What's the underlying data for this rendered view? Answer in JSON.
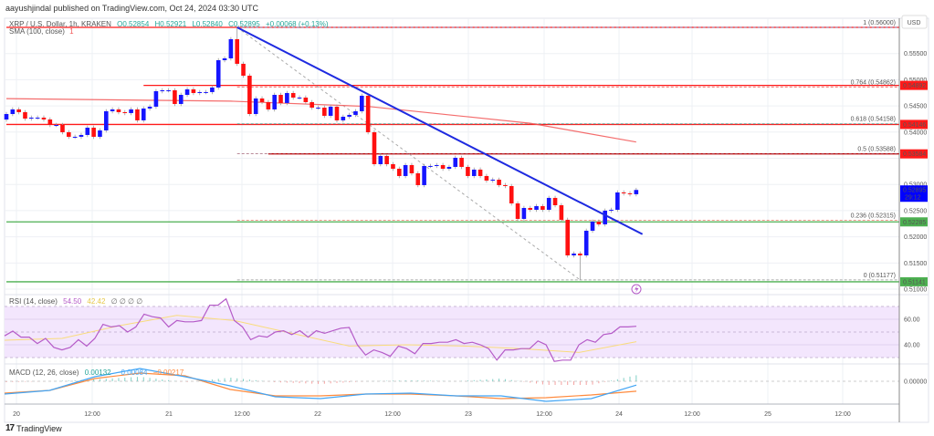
{
  "header": {
    "published": "aayushjindal published on TradingView.com, Oct 24, 2024 03:30 UTC"
  },
  "legend": {
    "symbol": "XRP / U.S. Dollar, 1h, KRAKEN",
    "open": "O0.52854",
    "high": "H0.52921",
    "low": "L0.52840",
    "close": "C0.52895",
    "change": "+0.00068 (+0.13%)",
    "sma_label": "SMA (100, close)",
    "sma_flag": "1"
  },
  "price_axis": {
    "currency": "USD",
    "ticks": [
      "0.55500",
      "0.55000",
      "0.54500",
      "0.54000",
      "0.53000",
      "0.52500",
      "0.52000",
      "0.51500",
      "0.51000"
    ],
    "badges": [
      {
        "text": "0.54892",
        "color": "#ff1a1a"
      },
      {
        "text": "0.54146",
        "color": "#ff1a1a"
      },
      {
        "text": "0.53584",
        "color": "#ff1a1a"
      },
      {
        "text": "0.52895",
        "sub": "29:12",
        "color": "#0000ff"
      },
      {
        "text": "0.52285",
        "color": "#4caf50"
      },
      {
        "text": "0.51141",
        "color": "#4caf50"
      }
    ]
  },
  "fib_labels": [
    {
      "text": "1 (0.56000)",
      "price": 0.56,
      "color": "#64b5f6"
    },
    {
      "text": "0.764 (0.54862)",
      "price": 0.54862,
      "color": "#e53935"
    },
    {
      "text": "0.618 (0.54158)",
      "price": 0.54158,
      "color": "#26a69a"
    },
    {
      "text": "0.5 (0.53588)",
      "price": 0.53588,
      "color": "#9c5a6e"
    },
    {
      "text": "0.236 (0.52315)",
      "price": 0.52315,
      "color": "#ef6b5b"
    },
    {
      "text": "0 (0.51177)",
      "price": 0.51177,
      "color": "#888888"
    }
  ],
  "time_axis": [
    "20",
    "12:00",
    "21",
    "12:00",
    "22",
    "12:00",
    "23",
    "12:00",
    "24",
    "12:00",
    "25",
    "12:00"
  ],
  "rsi_legend": {
    "label": "RSI (14, close)",
    "rsi": "54.50",
    "ma": "42.42",
    "extra": "∅ ∅ ∅ ∅",
    "ticks": [
      "60.00",
      "40.00"
    ]
  },
  "macd_legend": {
    "label": "MACD (12, 26, close)",
    "hist": "0.00132",
    "macd": "−0.00084",
    "signal": "−0.00217",
    "ticks": [
      "0.00000"
    ]
  },
  "branding": "TradingView",
  "colors": {
    "up": "#1515ff",
    "down": "#ff1010",
    "sma": "#f25454",
    "trendline": "#1e2ae0",
    "rsi": "#b55bc8",
    "rsi_ma": "#f9dc7c",
    "macd": "#42a5f5",
    "signal": "#ff8a3d"
  },
  "chart_data": [
    {
      "type": "candlestick",
      "symbol": "XRP / U.S. Dollar",
      "interval": "1h",
      "start": "2024-10-19 22:00",
      "end": "2024-10-24 03:00",
      "ylim": [
        0.5085,
        0.5615
      ],
      "first_open": 0.5424,
      "close": [
        0.54345,
        0.54433,
        0.5438,
        0.54258,
        0.54276,
        0.54276,
        0.54241,
        0.54136,
        0.54136,
        0.53997,
        0.5391,
        0.5391,
        0.53945,
        0.54084,
        0.5391,
        0.54032,
        0.54398,
        0.54433,
        0.5438,
        0.54363,
        0.54433,
        0.54224,
        0.5445,
        0.54485,
        0.54781,
        0.54798,
        0.54798,
        0.54537,
        0.54711,
        0.54816,
        0.54746,
        0.54764,
        0.54764,
        0.54851,
        0.55373,
        0.55408,
        0.55774,
        0.55304,
        0.55077,
        0.54345,
        0.54642,
        0.54572,
        0.54433,
        0.54711,
        0.54555,
        0.54746,
        0.54659,
        0.54659,
        0.54572,
        0.54467,
        0.54467,
        0.54311,
        0.54485,
        0.54224,
        0.54293,
        0.54328,
        0.54398,
        0.54694,
        0.53997,
        0.53387,
        0.53544,
        0.53387,
        0.533,
        0.53161,
        0.5337,
        0.53213,
        0.52987,
        0.53353,
        0.53353,
        0.5337,
        0.533,
        0.53335,
        0.53509,
        0.53335,
        0.53161,
        0.53283,
        0.53161,
        0.53074,
        0.53091,
        0.52987,
        0.52969,
        0.52638,
        0.52342,
        0.52551,
        0.52516,
        0.52586,
        0.52516,
        0.52743,
        0.52603,
        0.52325,
        0.51645,
        0.5168,
        0.51645,
        0.52116,
        0.5229,
        0.52238,
        0.52499,
        0.52516,
        0.52847,
        0.5283,
        0.52813,
        0.52895
      ],
      "extreme_high": {
        "time": "2024-10-21 11:00",
        "price": 0.56
      },
      "extreme_low": {
        "time": "2024-10-23 18:00",
        "price": 0.51177
      },
      "sma_100": [
        [
          "2024-10-19 22:00",
          0.5464
        ],
        [
          "2024-10-21 10:00",
          0.5459
        ],
        [
          "2024-10-22 08:00",
          0.5449
        ],
        [
          "2024-10-23 10:00",
          0.5417
        ],
        [
          "2024-10-24 03:00",
          0.5381
        ]
      ],
      "trendline": [
        [
          "2024-10-21 11:00",
          0.56
        ],
        [
          "2024-10-24 04:00",
          0.5205
        ]
      ],
      "horizontal_lines": [
        {
          "price": 0.56,
          "color": "#ff1a1a",
          "from": "2024-10-19 22:00"
        },
        {
          "price": 0.54892,
          "color": "#ff1a1a",
          "from": "2024-10-20 20:00"
        },
        {
          "price": 0.54146,
          "color": "#ff1a1a",
          "from": "2024-10-19 22:00"
        },
        {
          "price": 0.53584,
          "color": "#c00000",
          "from": "2024-10-21 16:00"
        },
        {
          "price": 0.52285,
          "color": "#4caf50",
          "from": "2024-10-19 22:00"
        },
        {
          "price": 0.51141,
          "color": "#4caf50",
          "from": "2024-10-19 22:00"
        }
      ],
      "fib_levels": [
        0.56,
        0.54862,
        0.54158,
        0.53588,
        0.52315,
        0.51177
      ]
    },
    {
      "type": "line",
      "name": "RSI (14, close)",
      "ylim": [
        20,
        80
      ],
      "band": [
        30,
        70
      ],
      "rsi": [
        47,
        50.7,
        46,
        46,
        41,
        45,
        38,
        36,
        38,
        44,
        39,
        45,
        56,
        54,
        55,
        50,
        54,
        64,
        62,
        61,
        54,
        59,
        58,
        58,
        59,
        71,
        71,
        76,
        59,
        54,
        44,
        47,
        46,
        50,
        51,
        48,
        51,
        46,
        51,
        49,
        51,
        53,
        53.6,
        40,
        32,
        36,
        34,
        31,
        39,
        37,
        33,
        41,
        41,
        42,
        42,
        44,
        41,
        42,
        40,
        37,
        28,
        36,
        36,
        37,
        37,
        43,
        40,
        27,
        28,
        28,
        40,
        44,
        42,
        48,
        49,
        54,
        54,
        54.5
      ],
      "rsi_ma": [
        43.6,
        45,
        55,
        63,
        59,
        49,
        39,
        40,
        39,
        37,
        34,
        42.42
      ]
    },
    {
      "type": "line",
      "name": "MACD (12, 26, close)",
      "macd": [
        -0.0028,
        -0.002,
        0.001,
        0.0028,
        0.001,
        -0.001,
        -0.0034,
        -0.0038,
        -0.0028,
        -0.0026,
        -0.0032,
        -0.0032,
        -0.0044,
        -0.0038,
        -0.00084
      ],
      "signal": [
        -0.0026,
        -0.002,
        0.0006,
        0.0018,
        0.0012,
        -0.0018,
        -0.0032,
        -0.0032,
        -0.0028,
        -0.0028,
        -0.0032,
        -0.0038,
        -0.0036,
        -0.003,
        -0.00217
      ],
      "histogram_last": 0.00132
    }
  ]
}
